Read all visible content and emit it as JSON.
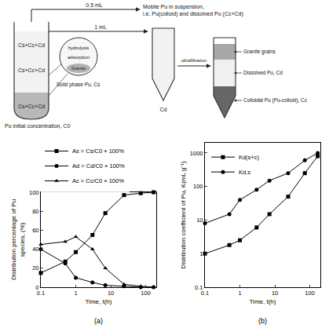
{
  "diagram": {
    "tube_labels": [
      "Cs+Cc+Cd",
      "Cs+Cc+Cd",
      "Cs+Cc+Cd"
    ],
    "zoom_labels": [
      "hydrolysis",
      "adsorption",
      "Granite"
    ],
    "solid_phase": "Solid phase Pu, Cs",
    "initial": "Pu initial concentration, C0",
    "volume_top": "0.5 mL",
    "mobile_label": [
      "Mobile Pu in suspension,",
      "i.e. Pu(colloid) and dissolved Pu (Cc+Cd)"
    ],
    "volume_sample": "1 mL",
    "process": "ultrafiltration",
    "filtrate": "Cd",
    "layers": [
      "Granite grains",
      "Dissolved Pu, Cd",
      "Colloidal Pu (Pu-colloid), Cc"
    ]
  },
  "chart_data": [
    {
      "type": "line",
      "title": "(a)",
      "x_label": "Time, t(h)",
      "y_label": "Distribution percentage of Pu species, (%)",
      "x": [
        0.1,
        0.5,
        1,
        3,
        7,
        24,
        72,
        168
      ],
      "series": [
        {
          "name": "As = Cs/C0 × 100%",
          "color": "#000000",
          "marker": "square",
          "line_style": "solid",
          "values": [
            15,
            27,
            37,
            55,
            78,
            97,
            99,
            100
          ]
        },
        {
          "name": "Ad = Cd/C0 × 100%",
          "color": "#000000",
          "marker": "circle",
          "line_style": "solid",
          "values": [
            40,
            25,
            10,
            5,
            2,
            1,
            0,
            0
          ]
        },
        {
          "name": "Ac = Cc/C0 × 100%",
          "color": "#000000",
          "marker": "triangle",
          "line_style": "solid",
          "values": [
            45,
            48,
            53,
            40,
            20,
            3,
            1,
            0
          ]
        }
      ],
      "xlim": [
        0.1,
        200
      ],
      "xticks": [
        0.1,
        1,
        10,
        100
      ],
      "ylim": [
        0,
        100
      ],
      "yticks": [
        0,
        20,
        40,
        60,
        80,
        100
      ],
      "log": "x",
      "grid": false,
      "legend": "top"
    },
    {
      "type": "line",
      "title": "(b)",
      "x_label": "Time, t(h)",
      "y_label": "Distribution coefficient of Pu, K(mL g⁻¹)",
      "x": [
        0.1,
        0.5,
        1,
        3,
        7,
        24,
        72,
        168
      ],
      "series": [
        {
          "name": "Kd(s+c)",
          "color": "#000000",
          "marker": "square",
          "line_style": "solid",
          "values": [
            1,
            1.8,
            2.5,
            6,
            15,
            50,
            250,
            800
          ]
        },
        {
          "name": "Kd,s",
          "color": "#000000",
          "marker": "circle",
          "line_style": "solid",
          "values": [
            8,
            15,
            40,
            80,
            150,
            250,
            600,
            1000
          ]
        }
      ],
      "xlim": [
        0.1,
        200
      ],
      "xticks": [
        0.1,
        1,
        10,
        100
      ],
      "ylim": [
        0.1,
        2000
      ],
      "yticks": [
        0.1,
        1,
        10,
        100,
        1000
      ],
      "log": true,
      "grid": false,
      "legend": "top left"
    }
  ]
}
